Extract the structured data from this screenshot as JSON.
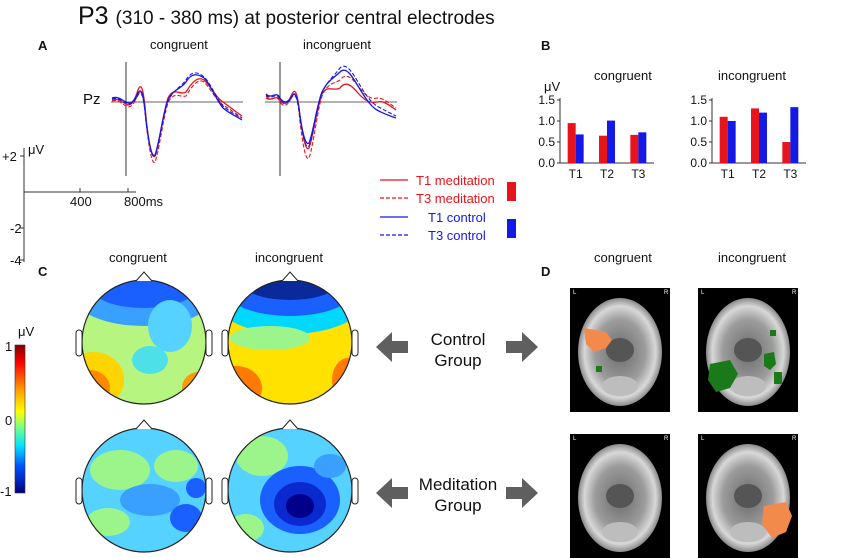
{
  "title": {
    "main": "P3",
    "sub": "(310 - 380 ms) at posterior central electrodes"
  },
  "panelA": {
    "letter": "A",
    "conditions": [
      "congruent",
      "incongruent"
    ],
    "electrode": "Pz",
    "yunit": "μV",
    "yticks": [
      "+2",
      "-2",
      "-4"
    ],
    "xticks": [
      "400",
      "800ms"
    ]
  },
  "legend": {
    "t1_meditation": "T1 meditation",
    "t3_meditation": "T3 meditation",
    "t1_control": "T1 control",
    "t3_control": "T3 control",
    "colors": {
      "meditation": "#e8141b",
      "control": "#1419e6"
    }
  },
  "chart_data": [
    {
      "type": "bar",
      "title": "congruent",
      "ylabel": "μV",
      "ylim": [
        0,
        1.5
      ],
      "yticks": [
        "1.5",
        "1.0",
        "0.5",
        "0.0"
      ],
      "categories": [
        "T1",
        "T2",
        "T3"
      ],
      "series": [
        {
          "name": "meditation",
          "color": "#e8141b",
          "values": [
            0.95,
            0.65,
            0.67
          ]
        },
        {
          "name": "control",
          "color": "#1419e6",
          "values": [
            0.68,
            1.01,
            0.73
          ]
        }
      ]
    },
    {
      "type": "bar",
      "title": "incongruent",
      "ylim": [
        0,
        1.5
      ],
      "yticks": [
        "1.5",
        "1.0",
        "0.5",
        "0.0"
      ],
      "categories": [
        "T1",
        "T2",
        "T3"
      ],
      "series": [
        {
          "name": "meditation",
          "color": "#e8141b",
          "values": [
            1.1,
            1.3,
            0.5
          ]
        },
        {
          "name": "control",
          "color": "#1419e6",
          "values": [
            1.0,
            1.2,
            1.33
          ]
        }
      ]
    }
  ],
  "panelB": {
    "letter": "B"
  },
  "panelC": {
    "letter": "C",
    "conditions": [
      "congruent",
      "incongruent"
    ],
    "colorbar": {
      "unit": "μV",
      "max": "1",
      "mid": "0",
      "min": "-1"
    }
  },
  "panelD": {
    "letter": "D",
    "conditions": [
      "congruent",
      "incongruent"
    ],
    "orient": {
      "left": "L",
      "right": "R"
    }
  },
  "groups": {
    "control": {
      "line1": "Control",
      "line2": "Group"
    },
    "meditation": {
      "line1": "Meditation",
      "line2": "Group"
    }
  }
}
